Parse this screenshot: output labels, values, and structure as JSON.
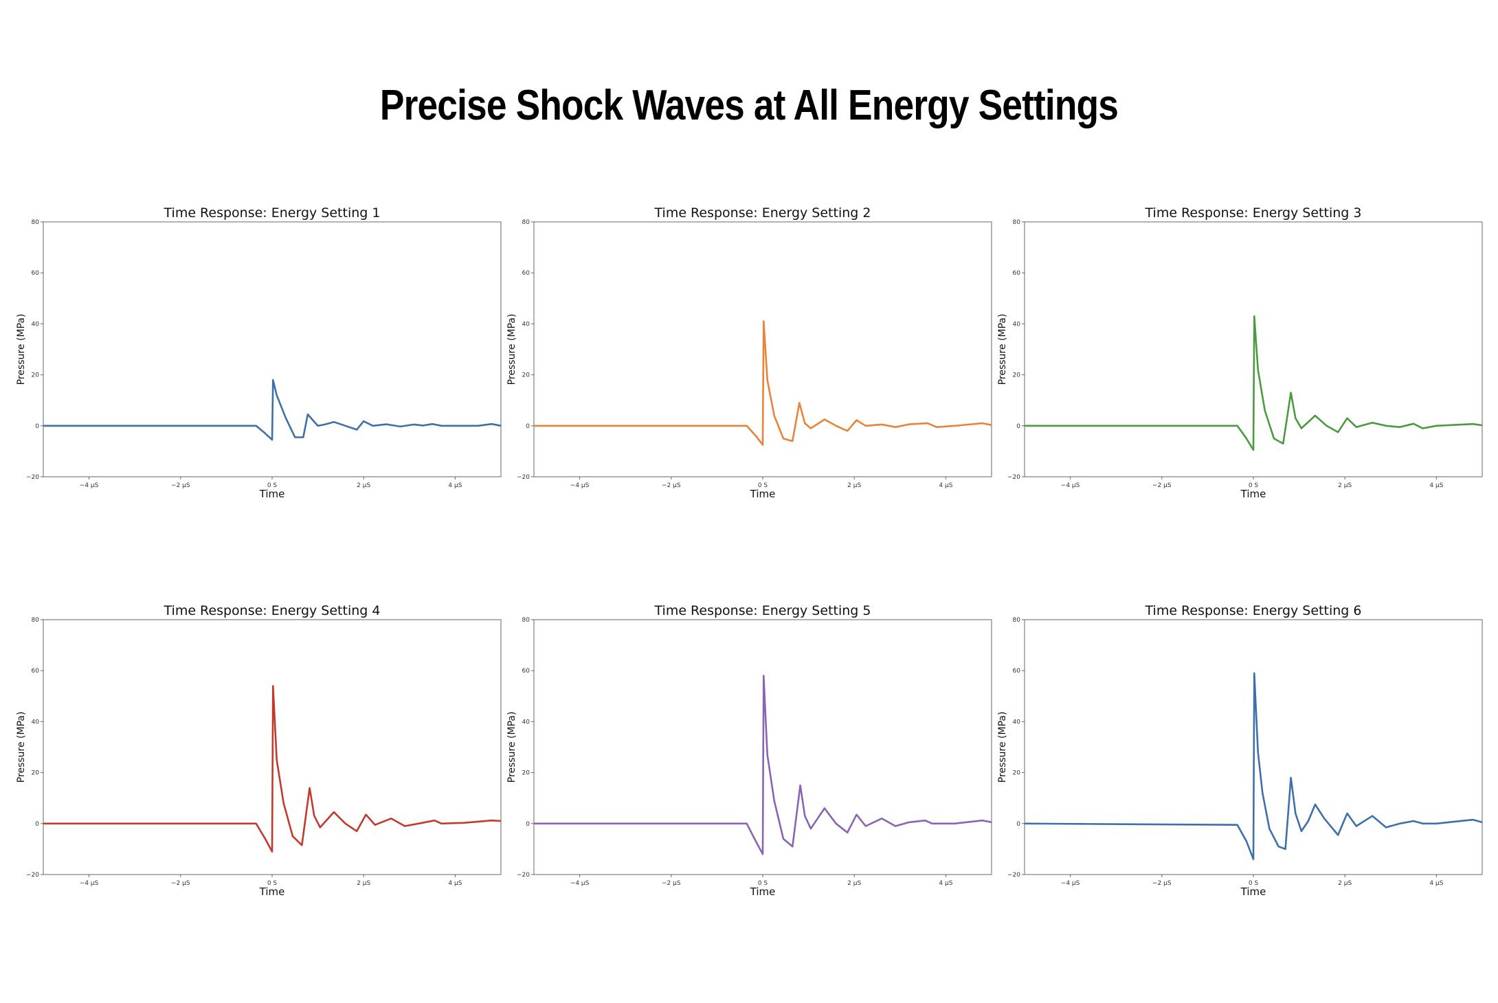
{
  "title": "Precise Shock Waves at All Energy Settings",
  "chart_data": [
    {
      "type": "line",
      "title": "Time Response: Energy Setting 1",
      "xlabel": "Time",
      "ylabel": "Pressure (MPa)",
      "xlim": [
        -5,
        5
      ],
      "ylim": [
        -20,
        80
      ],
      "grid": false,
      "xticks": [
        -4,
        -2,
        0,
        2,
        4
      ],
      "xtick_labels": [
        "−4 µS",
        "−2 µS",
        "0 S",
        "2 µS",
        "4 µS"
      ],
      "yticks": [
        -20,
        0,
        20,
        40,
        60,
        80
      ],
      "color": "#3d6faa",
      "points": [
        [
          -5,
          0
        ],
        [
          -0.35,
          0
        ],
        [
          -0.15,
          -3
        ],
        [
          0,
          -5.5
        ],
        [
          0.02,
          18
        ],
        [
          0.1,
          12
        ],
        [
          0.3,
          3
        ],
        [
          0.5,
          -4.5
        ],
        [
          0.68,
          -4.5
        ],
        [
          0.78,
          4.5
        ],
        [
          0.9,
          2
        ],
        [
          1.0,
          0
        ],
        [
          1.15,
          0.5
        ],
        [
          1.35,
          1.5
        ],
        [
          1.6,
          0
        ],
        [
          1.85,
          -1.5
        ],
        [
          2.0,
          1.8
        ],
        [
          2.2,
          0
        ],
        [
          2.5,
          0.6
        ],
        [
          2.8,
          -0.3
        ],
        [
          3.1,
          0.5
        ],
        [
          3.3,
          0.1
        ],
        [
          3.5,
          0.7
        ],
        [
          3.7,
          0
        ],
        [
          4.5,
          0
        ],
        [
          4.8,
          0.7
        ],
        [
          5,
          0
        ]
      ]
    },
    {
      "type": "line",
      "title": "Time Response: Energy Setting 2",
      "xlabel": "Time",
      "ylabel": "Pressure (MPa)",
      "xlim": [
        -5,
        5
      ],
      "ylim": [
        -20,
        80
      ],
      "grid": false,
      "xticks": [
        -4,
        -2,
        0,
        2,
        4
      ],
      "xtick_labels": [
        "−4 µS",
        "−2 µS",
        "0 S",
        "2 µS",
        "4 µS"
      ],
      "yticks": [
        -20,
        0,
        20,
        40,
        60,
        80
      ],
      "color": "#e8833a",
      "points": [
        [
          -5,
          0
        ],
        [
          -0.35,
          0
        ],
        [
          -0.15,
          -4
        ],
        [
          0,
          -7.5
        ],
        [
          0.02,
          41
        ],
        [
          0.1,
          18
        ],
        [
          0.25,
          4
        ],
        [
          0.45,
          -5
        ],
        [
          0.65,
          -6
        ],
        [
          0.8,
          9
        ],
        [
          0.92,
          1
        ],
        [
          1.05,
          -1
        ],
        [
          1.35,
          2.5
        ],
        [
          1.6,
          0
        ],
        [
          1.85,
          -2
        ],
        [
          2.05,
          2.2
        ],
        [
          2.25,
          0
        ],
        [
          2.6,
          0.5
        ],
        [
          2.9,
          -0.5
        ],
        [
          3.2,
          0.6
        ],
        [
          3.6,
          1
        ],
        [
          3.8,
          -0.5
        ],
        [
          4.2,
          0
        ],
        [
          4.8,
          1
        ],
        [
          5,
          0.3
        ]
      ]
    },
    {
      "type": "line",
      "title": "Time Response: Energy Setting 3",
      "xlabel": "Time",
      "ylabel": "Pressure (MPa)",
      "xlim": [
        -5,
        5
      ],
      "ylim": [
        -20,
        80
      ],
      "grid": false,
      "xticks": [
        -4,
        -2,
        0,
        2,
        4
      ],
      "xtick_labels": [
        "−4 µS",
        "−2 µS",
        "0 S",
        "2 µS",
        "4 µS"
      ],
      "yticks": [
        -20,
        0,
        20,
        40,
        60,
        80
      ],
      "color": "#4a9a3f",
      "points": [
        [
          -5,
          0
        ],
        [
          -0.35,
          0
        ],
        [
          -0.15,
          -5
        ],
        [
          0,
          -9.5
        ],
        [
          0.02,
          43
        ],
        [
          0.1,
          22
        ],
        [
          0.25,
          6
        ],
        [
          0.45,
          -5
        ],
        [
          0.65,
          -7
        ],
        [
          0.82,
          13
        ],
        [
          0.92,
          3
        ],
        [
          1.05,
          -1
        ],
        [
          1.35,
          4
        ],
        [
          1.6,
          0
        ],
        [
          1.85,
          -2.5
        ],
        [
          2.05,
          3
        ],
        [
          2.25,
          -0.5
        ],
        [
          2.6,
          1.2
        ],
        [
          2.9,
          0
        ],
        [
          3.2,
          -0.5
        ],
        [
          3.5,
          0.8
        ],
        [
          3.7,
          -1
        ],
        [
          4.0,
          0
        ],
        [
          4.8,
          0.7
        ],
        [
          5,
          0.2
        ]
      ]
    },
    {
      "type": "line",
      "title": "Time Response: Energy Setting 4",
      "xlabel": "Time",
      "ylabel": "Pressure (MPa)",
      "xlim": [
        -5,
        5
      ],
      "ylim": [
        -20,
        80
      ],
      "grid": false,
      "xticks": [
        -4,
        -2,
        0,
        2,
        4
      ],
      "xtick_labels": [
        "−4 µS",
        "−2 µS",
        "0 S",
        "2 µS",
        "4 µS"
      ],
      "yticks": [
        -20,
        0,
        20,
        40,
        60,
        80
      ],
      "color": "#c23a2b",
      "points": [
        [
          -5,
          0
        ],
        [
          -0.35,
          0
        ],
        [
          -0.15,
          -6
        ],
        [
          0,
          -11
        ],
        [
          0.02,
          54
        ],
        [
          0.1,
          25
        ],
        [
          0.25,
          8
        ],
        [
          0.45,
          -5
        ],
        [
          0.65,
          -8.5
        ],
        [
          0.82,
          14
        ],
        [
          0.92,
          3
        ],
        [
          1.05,
          -1.5
        ],
        [
          1.35,
          4.5
        ],
        [
          1.6,
          0
        ],
        [
          1.85,
          -3
        ],
        [
          2.05,
          3.5
        ],
        [
          2.25,
          -0.5
        ],
        [
          2.6,
          2
        ],
        [
          2.9,
          -1
        ],
        [
          3.2,
          0
        ],
        [
          3.55,
          1.2
        ],
        [
          3.7,
          0
        ],
        [
          4.2,
          0.3
        ],
        [
          4.8,
          1.2
        ],
        [
          5,
          1
        ]
      ]
    },
    {
      "type": "line",
      "title": "Time Response: Energy Setting 5",
      "xlabel": "Time",
      "ylabel": "Pressure (MPa)",
      "xlim": [
        -5,
        5
      ],
      "ylim": [
        -20,
        80
      ],
      "grid": false,
      "xticks": [
        -4,
        -2,
        0,
        2,
        4
      ],
      "xtick_labels": [
        "−4 µS",
        "−2 µS",
        "0 S",
        "2 µS",
        "4 µS"
      ],
      "yticks": [
        -20,
        0,
        20,
        40,
        60,
        80
      ],
      "color": "#8a63b5",
      "points": [
        [
          -5,
          0
        ],
        [
          -0.35,
          0
        ],
        [
          -0.15,
          -7
        ],
        [
          0,
          -12
        ],
        [
          0.02,
          58
        ],
        [
          0.1,
          27
        ],
        [
          0.25,
          9
        ],
        [
          0.45,
          -6
        ],
        [
          0.65,
          -9
        ],
        [
          0.82,
          15
        ],
        [
          0.92,
          3
        ],
        [
          1.05,
          -2
        ],
        [
          1.35,
          6
        ],
        [
          1.6,
          0
        ],
        [
          1.85,
          -3.5
        ],
        [
          2.05,
          3.5
        ],
        [
          2.25,
          -1
        ],
        [
          2.6,
          2
        ],
        [
          2.9,
          -1
        ],
        [
          3.2,
          0.5
        ],
        [
          3.55,
          1.2
        ],
        [
          3.7,
          0
        ],
        [
          4.2,
          0
        ],
        [
          4.8,
          1.2
        ],
        [
          5,
          0.5
        ]
      ]
    },
    {
      "type": "line",
      "title": "Time Response: Energy Setting 6",
      "xlabel": "Time",
      "ylabel": "Pressure (MPa)",
      "xlim": [
        -5,
        5
      ],
      "ylim": [
        -20,
        80
      ],
      "grid": false,
      "xticks": [
        -4,
        -2,
        0,
        2,
        4
      ],
      "xtick_labels": [
        "−4 µS",
        "−2 µS",
        "0 S",
        "2 µS",
        "4 µS"
      ],
      "yticks": [
        -20,
        0,
        20,
        40,
        60,
        80
      ],
      "color": "#3d6faa",
      "points": [
        [
          -5,
          0
        ],
        [
          -0.35,
          -0.5
        ],
        [
          -0.15,
          -7
        ],
        [
          0,
          -14
        ],
        [
          0.02,
          59
        ],
        [
          0.1,
          28
        ],
        [
          0.2,
          12
        ],
        [
          0.35,
          -2
        ],
        [
          0.55,
          -9
        ],
        [
          0.7,
          -10
        ],
        [
          0.82,
          18
        ],
        [
          0.92,
          4
        ],
        [
          1.05,
          -3
        ],
        [
          1.2,
          1
        ],
        [
          1.35,
          7.5
        ],
        [
          1.55,
          2
        ],
        [
          1.85,
          -4.5
        ],
        [
          2.05,
          4
        ],
        [
          2.25,
          -1
        ],
        [
          2.6,
          3
        ],
        [
          2.9,
          -1.5
        ],
        [
          3.2,
          0
        ],
        [
          3.5,
          1
        ],
        [
          3.7,
          0
        ],
        [
          4.0,
          0
        ],
        [
          4.8,
          1.5
        ],
        [
          5,
          0.5
        ]
      ]
    }
  ]
}
